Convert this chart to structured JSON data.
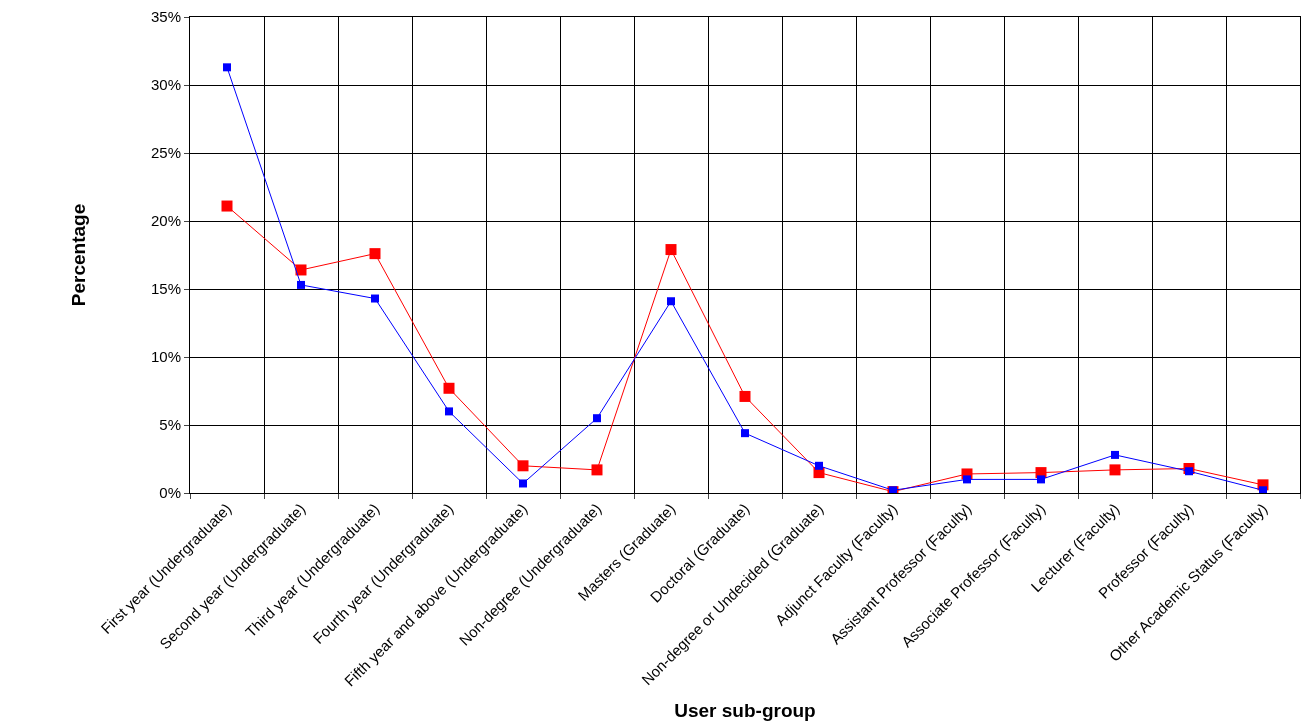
{
  "chart_data": {
    "type": "line",
    "xlabel": "User sub-group",
    "ylabel": "Percentage",
    "categories": [
      "First year (Undergraduate)",
      "Second year (Undergraduate)",
      "Third year (Undergraduate)",
      "Fourth year (Undergraduate)",
      "Fifth year and above (Undergraduate)",
      "Non-degree (Undergraduate)",
      "Masters (Graduate)",
      "Doctoral (Graduate)",
      "Non-degree or Undecided (Graduate)",
      "Adjunct Faculty (Faculty)",
      "Assistant Professor (Faculty)",
      "Associate Professor (Faculty)",
      "Lecturer (Faculty)",
      "Professor (Faculty)",
      "Other Academic Status (Faculty)"
    ],
    "series": [
      {
        "color": "#ff0000",
        "values": [
          21.1,
          16.4,
          17.6,
          7.7,
          2.0,
          1.7,
          17.9,
          7.1,
          1.5,
          0.1,
          1.4,
          1.5,
          1.7,
          1.8,
          0.6
        ]
      },
      {
        "color": "#0000ff",
        "values": [
          31.3,
          15.3,
          14.3,
          6.0,
          0.7,
          5.5,
          14.1,
          4.4,
          2.0,
          0.2,
          1.0,
          1.0,
          2.8,
          1.6,
          0.2
        ]
      }
    ],
    "ylim": [
      0,
      35
    ],
    "yticks": [
      {
        "value": 0,
        "label": "0%"
      },
      {
        "value": 5,
        "label": "5%"
      },
      {
        "value": 10,
        "label": "10%"
      },
      {
        "value": 15,
        "label": "15%"
      },
      {
        "value": 20,
        "label": "20%"
      },
      {
        "value": 25,
        "label": "25%"
      },
      {
        "value": 30,
        "label": "30%"
      },
      {
        "value": 35,
        "label": "35%"
      }
    ],
    "grid": true,
    "marker": "square",
    "line_style": "solid"
  }
}
